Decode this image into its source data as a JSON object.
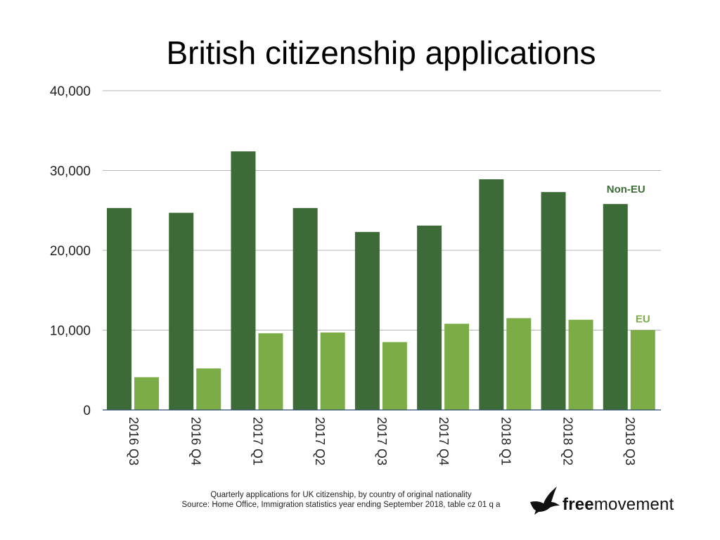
{
  "chart_data": {
    "type": "bar",
    "title": "British citizenship applications",
    "categories": [
      "2016 Q3",
      "2016 Q4",
      "2017 Q1",
      "2017 Q2",
      "2017 Q3",
      "2017 Q4",
      "2018 Q1",
      "2018 Q2",
      "2018 Q3"
    ],
    "series": [
      {
        "name": "Non-EU",
        "color": "#3d6b37",
        "values": [
          25300,
          24700,
          32400,
          25300,
          22300,
          23100,
          28900,
          27300,
          25800
        ]
      },
      {
        "name": "EU",
        "color": "#7bac45",
        "values": [
          4100,
          5200,
          9600,
          9700,
          8500,
          10800,
          11500,
          11300,
          10000
        ]
      }
    ],
    "ylim": [
      0,
      40000
    ],
    "yticks": [
      "0",
      "10,000",
      "20,000",
      "30,000",
      "40,000"
    ],
    "grid": true,
    "legend": "direct labels on last bars"
  },
  "footer": {
    "caption_line1": "Quarterly applications for UK citizenship, by country of original nationality",
    "caption_line2": "Source: Home Office, Immigration statistics year ending September 2018, table cz 01 q a"
  },
  "logo": {
    "word_bold": "free",
    "word_regular": "movement"
  }
}
